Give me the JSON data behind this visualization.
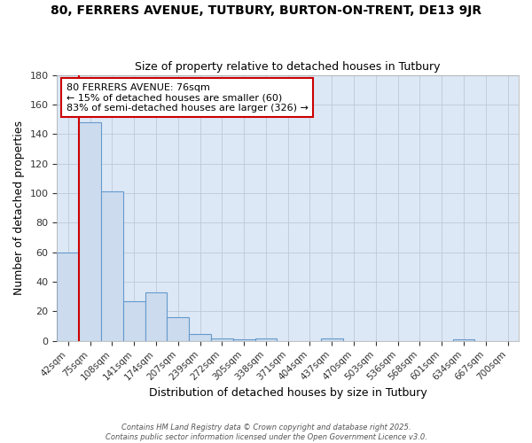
{
  "title1": "80, FERRERS AVENUE, TUTBURY, BURTON-ON-TRENT, DE13 9JR",
  "title2": "Size of property relative to detached houses in Tutbury",
  "xlabel": "Distribution of detached houses by size in Tutbury",
  "ylabel": "Number of detached properties",
  "bar_color": "#ccdcee",
  "bar_edge_color": "#6699cc",
  "background_color": "#dce8f5",
  "grid_color": "#c0c8d8",
  "fig_background": "#ffffff",
  "bins": [
    "42sqm",
    "75sqm",
    "108sqm",
    "141sqm",
    "174sqm",
    "207sqm",
    "239sqm",
    "272sqm",
    "305sqm",
    "338sqm",
    "371sqm",
    "404sqm",
    "437sqm",
    "470sqm",
    "503sqm",
    "536sqm",
    "568sqm",
    "601sqm",
    "634sqm",
    "667sqm",
    "700sqm"
  ],
  "values": [
    60,
    148,
    101,
    27,
    33,
    16,
    5,
    2,
    1,
    2,
    0,
    0,
    2,
    0,
    0,
    0,
    0,
    0,
    1,
    0,
    0
  ],
  "ylim": [
    0,
    180
  ],
  "yticks": [
    0,
    20,
    40,
    60,
    80,
    100,
    120,
    140,
    160,
    180
  ],
  "subject_line_color": "#cc0000",
  "annotation_line1": "80 FERRERS AVENUE: 76sqm",
  "annotation_line2": "← 15% of detached houses are smaller (60)",
  "annotation_line3": "83% of semi-detached houses are larger (326) →",
  "annotation_box_color": "#ffffff",
  "annotation_box_edge_color": "#cc0000",
  "footer1": "Contains HM Land Registry data © Crown copyright and database right 2025.",
  "footer2": "Contains public sector information licensed under the Open Government Licence v3.0."
}
